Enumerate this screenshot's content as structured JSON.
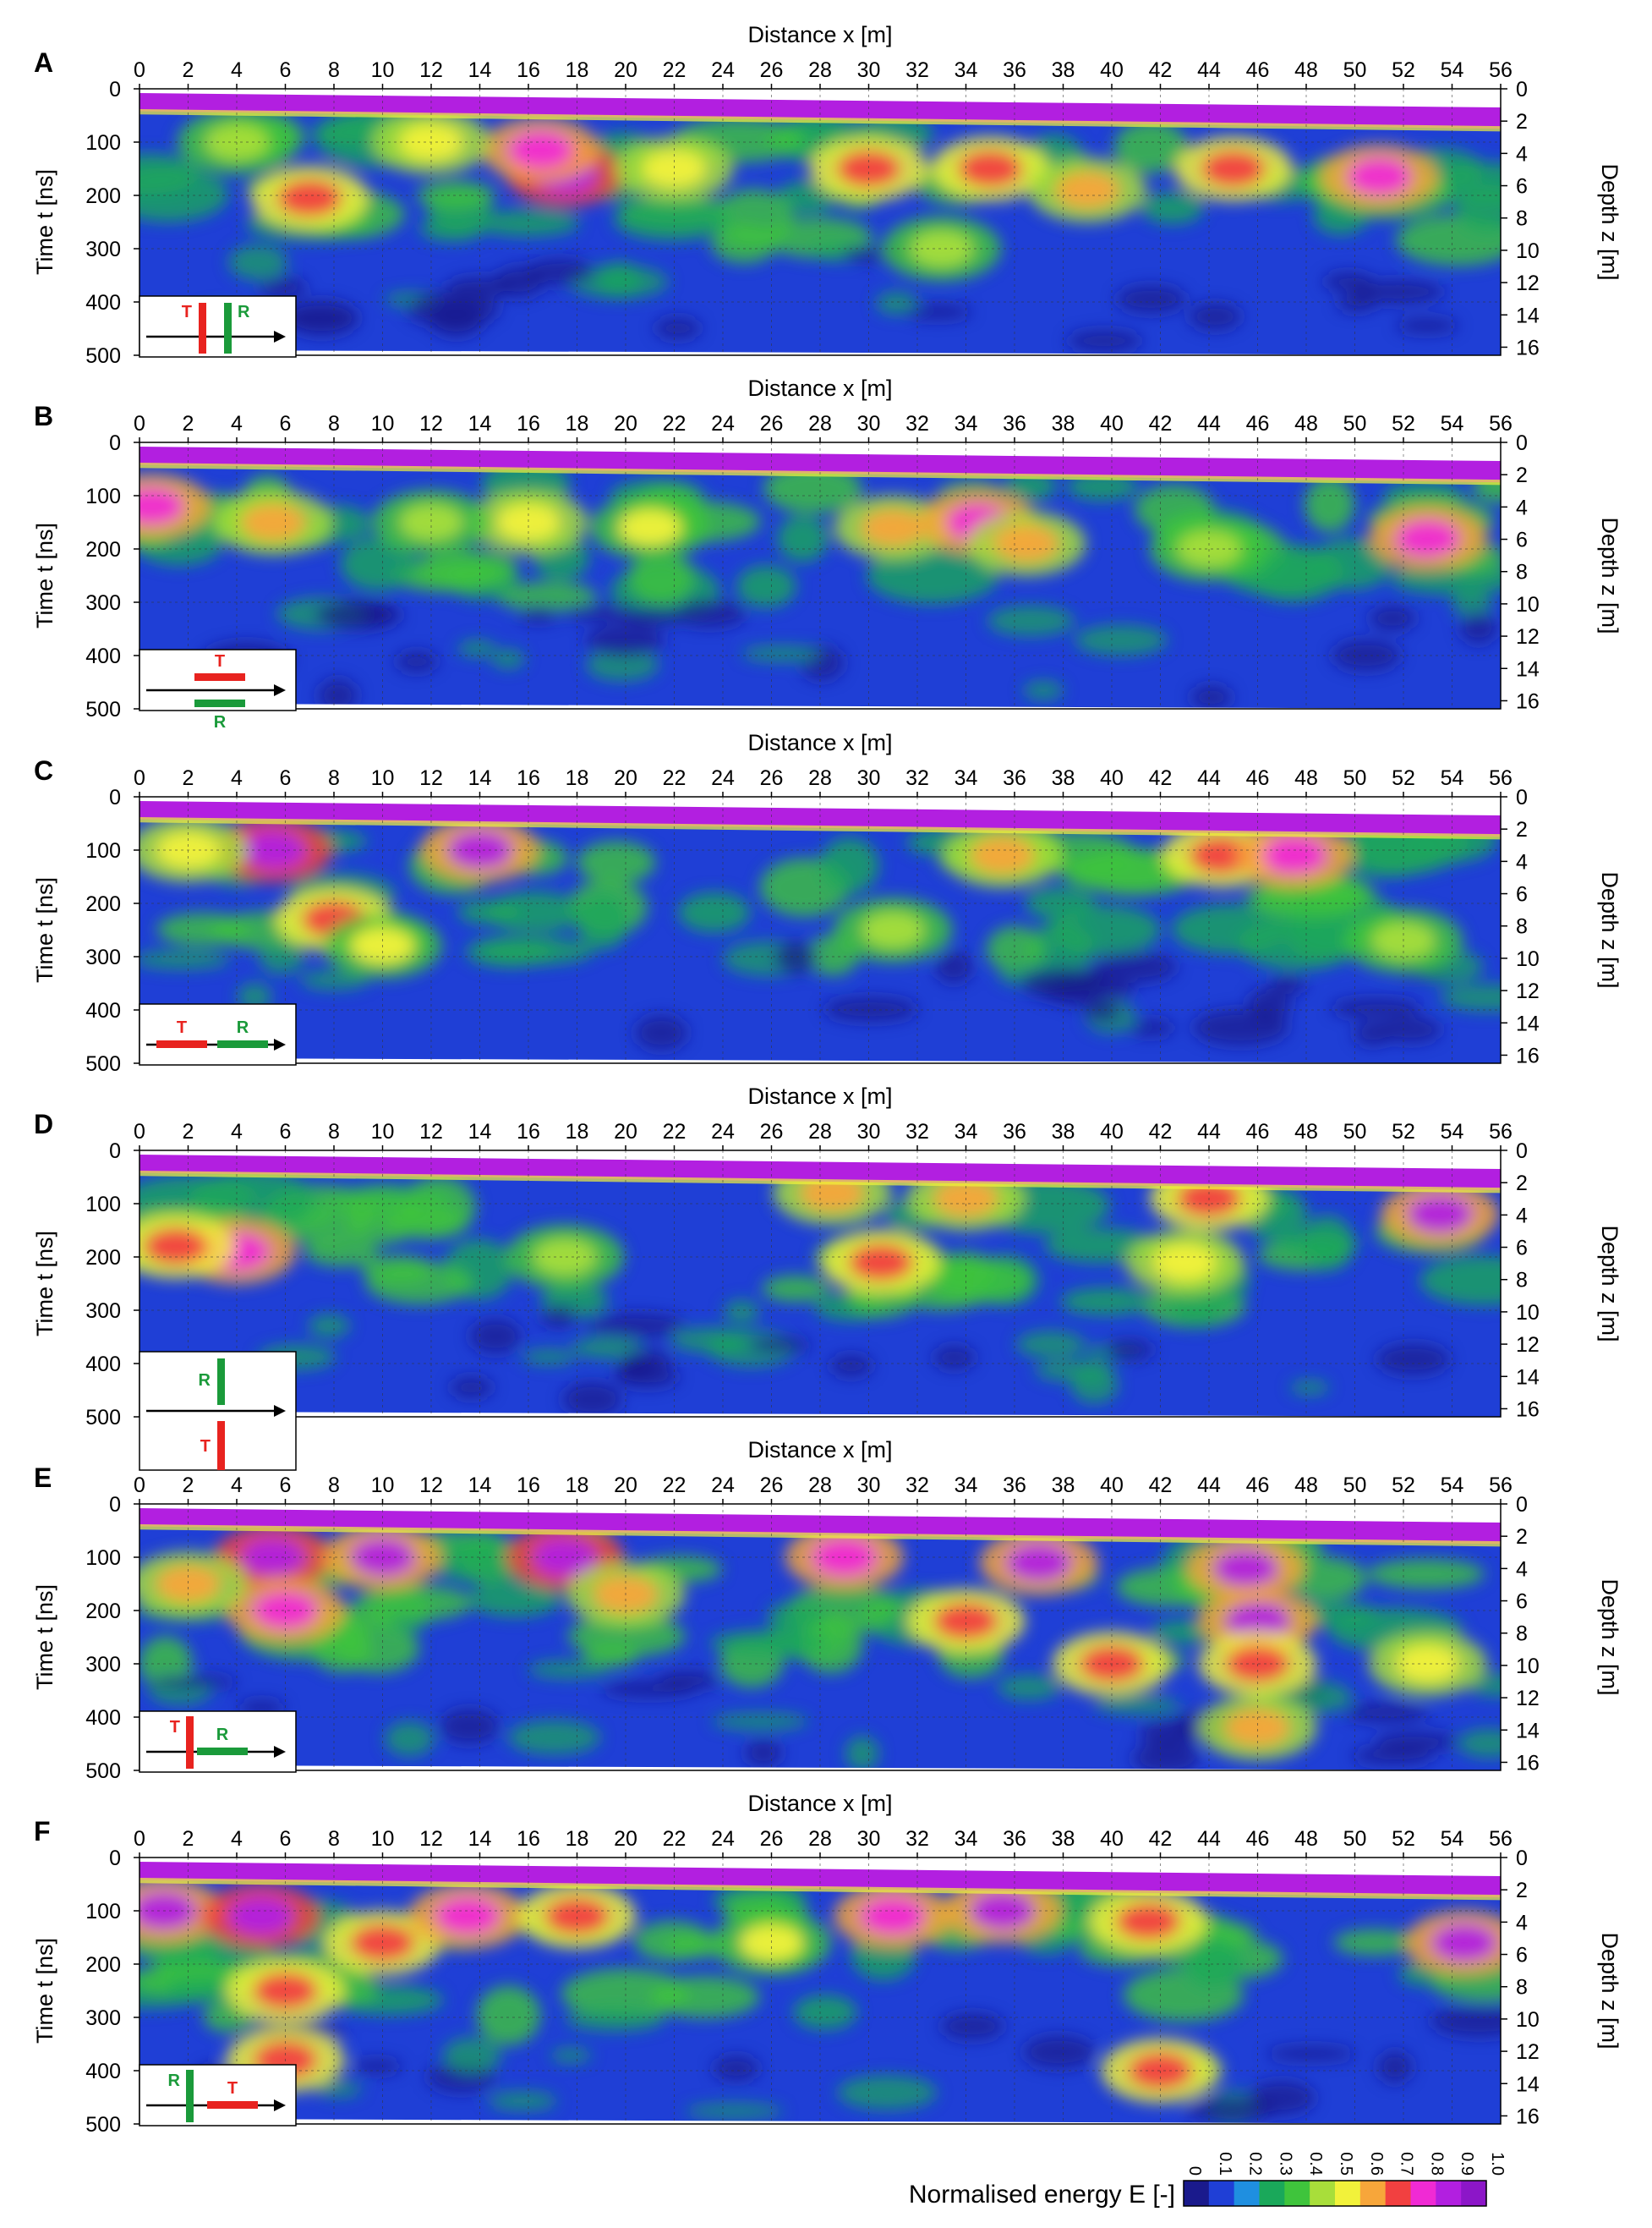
{
  "chart_data": [
    {
      "type": "heatmap",
      "panel_label": "A",
      "xlabel": "Distance x [m]",
      "ylabel_left": "Time t [ns]",
      "ylabel_right": "Depth z [m]",
      "x_ticks": [
        0,
        2,
        4,
        6,
        8,
        10,
        12,
        14,
        16,
        18,
        20,
        22,
        24,
        26,
        28,
        30,
        32,
        34,
        36,
        38,
        40,
        42,
        44,
        46,
        48,
        50,
        52,
        54,
        56
      ],
      "y_ticks": [
        0,
        100,
        200,
        300,
        400,
        500
      ],
      "depth_ticks": [
        0,
        2,
        4,
        6,
        8,
        10,
        12,
        14,
        16
      ],
      "xlim": [
        0,
        56
      ],
      "ylim": [
        0,
        500
      ],
      "depth_lim": [
        0,
        16.5
      ],
      "grid": true,
      "antenna": {
        "config": "perpendicular-cross",
        "labels": [
          "T",
          "R"
        ]
      },
      "hotspots": [
        {
          "x": 17.5,
          "t": 160,
          "e": 0.95
        },
        {
          "x": 16.5,
          "t": 115,
          "e": 0.8
        },
        {
          "x": 7,
          "t": 205,
          "e": 0.7
        },
        {
          "x": 12,
          "t": 100,
          "e": 0.55
        },
        {
          "x": 22,
          "t": 150,
          "e": 0.55
        },
        {
          "x": 30,
          "t": 150,
          "e": 0.7
        },
        {
          "x": 35,
          "t": 150,
          "e": 0.75
        },
        {
          "x": 39,
          "t": 190,
          "e": 0.65
        },
        {
          "x": 45,
          "t": 150,
          "e": 0.7
        },
        {
          "x": 51,
          "t": 165,
          "e": 0.85
        },
        {
          "x": 33,
          "t": 300,
          "e": 0.45
        },
        {
          "x": 4,
          "t": 100,
          "e": 0.45
        }
      ]
    },
    {
      "type": "heatmap",
      "panel_label": "B",
      "xlabel": "Distance x [m]",
      "ylabel_left": "Time t [ns]",
      "ylabel_right": "Depth z [m]",
      "x_ticks": [
        0,
        2,
        4,
        6,
        8,
        10,
        12,
        14,
        16,
        18,
        20,
        22,
        24,
        26,
        28,
        30,
        32,
        34,
        36,
        38,
        40,
        42,
        44,
        46,
        48,
        50,
        52,
        54,
        56
      ],
      "y_ticks": [
        0,
        100,
        200,
        300,
        400,
        500
      ],
      "depth_ticks": [
        0,
        2,
        4,
        6,
        8,
        10,
        12,
        14,
        16
      ],
      "xlim": [
        0,
        56
      ],
      "ylim": [
        0,
        500
      ],
      "depth_lim": [
        0,
        16.5
      ],
      "grid": true,
      "antenna": {
        "config": "parallel-broadside",
        "labels": [
          "T",
          "R"
        ]
      },
      "hotspots": [
        {
          "x": 0.5,
          "t": 120,
          "e": 0.85
        },
        {
          "x": 5.5,
          "t": 150,
          "e": 0.6
        },
        {
          "x": 16,
          "t": 150,
          "e": 0.55
        },
        {
          "x": 21,
          "t": 160,
          "e": 0.5
        },
        {
          "x": 31,
          "t": 160,
          "e": 0.6
        },
        {
          "x": 34.5,
          "t": 150,
          "e": 0.8
        },
        {
          "x": 36.5,
          "t": 190,
          "e": 0.65
        },
        {
          "x": 53,
          "t": 180,
          "e": 0.85
        },
        {
          "x": 44,
          "t": 200,
          "e": 0.45
        },
        {
          "x": 12,
          "t": 150,
          "e": 0.45
        }
      ]
    },
    {
      "type": "heatmap",
      "panel_label": "C",
      "xlabel": "Distance x [m]",
      "ylabel_left": "Time t [ns]",
      "ylabel_right": "Depth z [m]",
      "x_ticks": [
        0,
        2,
        4,
        6,
        8,
        10,
        12,
        14,
        16,
        18,
        20,
        22,
        24,
        26,
        28,
        30,
        32,
        34,
        36,
        38,
        40,
        42,
        44,
        46,
        48,
        50,
        52,
        54,
        56
      ],
      "y_ticks": [
        0,
        100,
        200,
        300,
        400,
        500
      ],
      "depth_ticks": [
        0,
        2,
        4,
        6,
        8,
        10,
        12,
        14,
        16
      ],
      "xlim": [
        0,
        56
      ],
      "ylim": [
        0,
        500
      ],
      "depth_lim": [
        0,
        16.5
      ],
      "grid": true,
      "antenna": {
        "config": "inline-endfire",
        "labels": [
          "T",
          "R"
        ]
      },
      "hotspots": [
        {
          "x": 5.5,
          "t": 100,
          "e": 0.95
        },
        {
          "x": 14,
          "t": 100,
          "e": 0.9
        },
        {
          "x": 8,
          "t": 230,
          "e": 0.75
        },
        {
          "x": 2,
          "t": 100,
          "e": 0.55
        },
        {
          "x": 10,
          "t": 280,
          "e": 0.5
        },
        {
          "x": 35.5,
          "t": 110,
          "e": 0.65
        },
        {
          "x": 44.5,
          "t": 110,
          "e": 0.75
        },
        {
          "x": 47.5,
          "t": 110,
          "e": 0.8
        },
        {
          "x": 31,
          "t": 250,
          "e": 0.45
        },
        {
          "x": 52,
          "t": 270,
          "e": 0.45
        }
      ]
    },
    {
      "type": "heatmap",
      "panel_label": "D",
      "xlabel": "Distance x [m]",
      "ylabel_left": "Time t [ns]",
      "ylabel_right": "Depth z [m]",
      "x_ticks": [
        0,
        2,
        4,
        6,
        8,
        10,
        12,
        14,
        16,
        18,
        20,
        22,
        24,
        26,
        28,
        30,
        32,
        34,
        36,
        38,
        40,
        42,
        44,
        46,
        48,
        50,
        52,
        54,
        56
      ],
      "y_ticks": [
        0,
        100,
        200,
        300,
        400,
        500
      ],
      "depth_ticks": [
        0,
        2,
        4,
        6,
        8,
        10,
        12,
        14,
        16
      ],
      "xlim": [
        0,
        56
      ],
      "ylim": [
        0,
        500
      ],
      "depth_lim": [
        0,
        16.5
      ],
      "grid": true,
      "antenna": {
        "config": "perpendicular-broadside",
        "labels": [
          "R",
          "T"
        ]
      },
      "hotspots": [
        {
          "x": 4,
          "t": 190,
          "e": 0.8
        },
        {
          "x": 1.5,
          "t": 180,
          "e": 0.7
        },
        {
          "x": 30.5,
          "t": 210,
          "e": 0.75
        },
        {
          "x": 28.5,
          "t": 80,
          "e": 0.6
        },
        {
          "x": 34,
          "t": 90,
          "e": 0.65
        },
        {
          "x": 44,
          "t": 90,
          "e": 0.7
        },
        {
          "x": 53.5,
          "t": 120,
          "e": 0.9
        },
        {
          "x": 43,
          "t": 210,
          "e": 0.55
        },
        {
          "x": 17.5,
          "t": 200,
          "e": 0.45
        }
      ]
    },
    {
      "type": "heatmap",
      "panel_label": "E",
      "xlabel": "Distance x [m]",
      "ylabel_left": "Time t [ns]",
      "ylabel_right": "Depth z [m]",
      "x_ticks": [
        0,
        2,
        4,
        6,
        8,
        10,
        12,
        14,
        16,
        18,
        20,
        22,
        24,
        26,
        28,
        30,
        32,
        34,
        36,
        38,
        40,
        42,
        44,
        46,
        48,
        50,
        52,
        54,
        56
      ],
      "y_ticks": [
        0,
        100,
        200,
        300,
        400,
        500
      ],
      "depth_ticks": [
        0,
        2,
        4,
        6,
        8,
        10,
        12,
        14,
        16
      ],
      "xlim": [
        0,
        56
      ],
      "ylim": [
        0,
        500
      ],
      "depth_lim": [
        0,
        16.5
      ],
      "grid": true,
      "antenna": {
        "config": "perpendicular-endfire",
        "labels": [
          "T",
          "R"
        ]
      },
      "hotspots": [
        {
          "x": 5.5,
          "t": 100,
          "e": 0.95
        },
        {
          "x": 10,
          "t": 100,
          "e": 0.9
        },
        {
          "x": 17.5,
          "t": 100,
          "e": 0.95
        },
        {
          "x": 29,
          "t": 100,
          "e": 0.85
        },
        {
          "x": 37,
          "t": 110,
          "e": 0.9
        },
        {
          "x": 45.5,
          "t": 120,
          "e": 0.9
        },
        {
          "x": 46,
          "t": 220,
          "e": 0.9
        },
        {
          "x": 46,
          "t": 300,
          "e": 0.75
        },
        {
          "x": 40,
          "t": 300,
          "e": 0.7
        },
        {
          "x": 34,
          "t": 220,
          "e": 0.7
        },
        {
          "x": 6,
          "t": 200,
          "e": 0.8
        },
        {
          "x": 20,
          "t": 170,
          "e": 0.6
        },
        {
          "x": 46,
          "t": 420,
          "e": 0.65
        },
        {
          "x": 2,
          "t": 150,
          "e": 0.6
        },
        {
          "x": 53,
          "t": 300,
          "e": 0.55
        }
      ]
    },
    {
      "type": "heatmap",
      "panel_label": "F",
      "xlabel": "Distance x [m]",
      "ylabel_left": "Time t [ns]",
      "ylabel_right": "Depth z [m]",
      "x_ticks": [
        0,
        2,
        4,
        6,
        8,
        10,
        12,
        14,
        16,
        18,
        20,
        22,
        24,
        26,
        28,
        30,
        32,
        34,
        36,
        38,
        40,
        42,
        44,
        46,
        48,
        50,
        52,
        54,
        56
      ],
      "y_ticks": [
        0,
        100,
        200,
        300,
        400,
        500
      ],
      "depth_ticks": [
        0,
        2,
        4,
        6,
        8,
        10,
        12,
        14,
        16
      ],
      "xlim": [
        0,
        56
      ],
      "ylim": [
        0,
        500
      ],
      "depth_lim": [
        0,
        16.5
      ],
      "grid": true,
      "antenna": {
        "config": "inline-endfire-reversed",
        "labels": [
          "R",
          "T"
        ]
      },
      "hotspots": [
        {
          "x": 1,
          "t": 100,
          "e": 0.9
        },
        {
          "x": 5,
          "t": 110,
          "e": 0.95
        },
        {
          "x": 6,
          "t": 250,
          "e": 0.75
        },
        {
          "x": 10,
          "t": 160,
          "e": 0.7
        },
        {
          "x": 13.5,
          "t": 110,
          "e": 0.85
        },
        {
          "x": 18,
          "t": 110,
          "e": 0.7
        },
        {
          "x": 31,
          "t": 110,
          "e": 0.8
        },
        {
          "x": 35.5,
          "t": 100,
          "e": 0.9
        },
        {
          "x": 41.5,
          "t": 120,
          "e": 0.7
        },
        {
          "x": 54.5,
          "t": 160,
          "e": 0.9
        },
        {
          "x": 6,
          "t": 380,
          "e": 0.7
        },
        {
          "x": 42,
          "t": 400,
          "e": 0.7
        },
        {
          "x": 26,
          "t": 160,
          "e": 0.5
        }
      ]
    }
  ],
  "colorbar": {
    "label": "Normalised energy E [-]",
    "ticks": [
      "0",
      "0.1",
      "0.2",
      "0.3",
      "0.4",
      "0.5",
      "0.6",
      "0.7",
      "0.8",
      "0.9",
      "1.0"
    ],
    "colors": [
      "#1a1a8c",
      "#1f3fd6",
      "#1f8fe0",
      "#1aa85a",
      "#3fc43c",
      "#a8de3a",
      "#f2f23a",
      "#f7a63a",
      "#f24040",
      "#f02ad4",
      "#b21fe0",
      "#8c16c8"
    ]
  }
}
